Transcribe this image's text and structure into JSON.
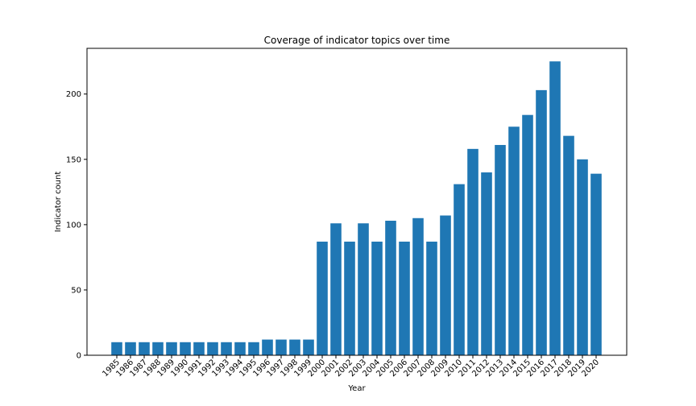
{
  "chart_data": {
    "type": "bar",
    "title": "Coverage of indicator topics over time",
    "xlabel": "Year",
    "ylabel": "Indicator count",
    "categories": [
      "1985",
      "1986",
      "1987",
      "1988",
      "1989",
      "1990",
      "1991",
      "1992",
      "1993",
      "1994",
      "1995",
      "1996",
      "1997",
      "1998",
      "1999",
      "2000",
      "2001",
      "2002",
      "2003",
      "2004",
      "2005",
      "2006",
      "2007",
      "2008",
      "2009",
      "2010",
      "2011",
      "2012",
      "2013",
      "2014",
      "2015",
      "2016",
      "2017",
      "2018",
      "2019",
      "2020"
    ],
    "values": [
      10,
      10,
      10,
      10,
      10,
      10,
      10,
      10,
      10,
      10,
      10,
      12,
      12,
      12,
      12,
      87,
      101,
      87,
      101,
      87,
      103,
      87,
      105,
      87,
      107,
      131,
      158,
      140,
      161,
      175,
      184,
      203,
      225,
      168,
      150,
      139
    ],
    "ylim": [
      0,
      235
    ],
    "yticks": [
      0,
      50,
      100,
      150,
      200
    ],
    "bar_color": "#1f77b4",
    "grid": false,
    "legend": "none"
  }
}
